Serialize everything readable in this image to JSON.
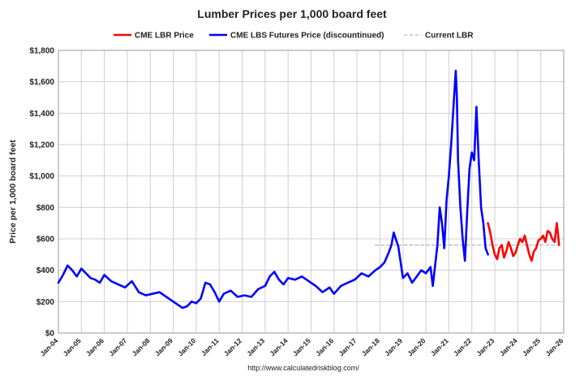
{
  "chart_data": {
    "type": "line",
    "title": "Lumber Prices per 1,000 board feet",
    "ylabel": "Price per 1,000 board feet",
    "xlabel": "",
    "source": "http://www.calculatedriskblog.com/",
    "ylim": [
      0,
      1800
    ],
    "yticks": [
      0,
      200,
      400,
      600,
      800,
      1000,
      1200,
      1400,
      1600,
      1800
    ],
    "ytick_labels": [
      "$0",
      "$200",
      "$400",
      "$600",
      "$800",
      "$1,000",
      "$1,200",
      "$1,400",
      "$1,600",
      "$1,800"
    ],
    "xlim": [
      2004,
      2026
    ],
    "xticks": [
      2004,
      2005,
      2006,
      2007,
      2008,
      2009,
      2010,
      2011,
      2012,
      2013,
      2014,
      2015,
      2016,
      2017,
      2018,
      2019,
      2020,
      2021,
      2022,
      2023,
      2024,
      2025,
      2026
    ],
    "xtick_labels": [
      "Jan-04",
      "Jan-05",
      "Jan-06",
      "Jan-07",
      "Jan-08",
      "Jan-09",
      "Jan-10",
      "Jan-11",
      "Jan-12",
      "Jan-13",
      "Jan-14",
      "Jan-15",
      "Jan-16",
      "Jan-17",
      "Jan-18",
      "Jan-19",
      "Jan-20",
      "Jan-21",
      "Jan-22",
      "Jan-23",
      "Jan-24",
      "Jan-25",
      "Jan-26"
    ],
    "grid": true,
    "legend_position": "top",
    "series": [
      {
        "name": "CME LBR Price",
        "color": "#ff0000",
        "x": [
          2022.7,
          2022.8,
          2022.9,
          2023.0,
          2023.1,
          2023.2,
          2023.3,
          2023.4,
          2023.5,
          2023.6,
          2023.7,
          2023.8,
          2023.9,
          2024.0,
          2024.1,
          2024.2,
          2024.3,
          2024.4,
          2024.5,
          2024.6,
          2024.7,
          2024.8,
          2024.9,
          2025.0,
          2025.1,
          2025.2,
          2025.3,
          2025.4,
          2025.5,
          2025.6,
          2025.7,
          2025.8
        ],
        "y": [
          700,
          640,
          560,
          500,
          470,
          540,
          560,
          480,
          520,
          580,
          540,
          490,
          510,
          560,
          600,
          580,
          620,
          560,
          500,
          460,
          520,
          540,
          590,
          600,
          620,
          580,
          650,
          640,
          600,
          580,
          700,
          560
        ]
      },
      {
        "name": "CME LBS Futures Price (discountinued)",
        "color": "#0000ff",
        "x": [
          2004.0,
          2004.2,
          2004.4,
          2004.6,
          2004.8,
          2005.0,
          2005.2,
          2005.4,
          2005.6,
          2005.8,
          2006.0,
          2006.3,
          2006.6,
          2006.9,
          2007.2,
          2007.5,
          2007.8,
          2008.1,
          2008.4,
          2008.7,
          2009.0,
          2009.2,
          2009.4,
          2009.6,
          2009.8,
          2010.0,
          2010.2,
          2010.4,
          2010.6,
          2010.8,
          2011.0,
          2011.2,
          2011.5,
          2011.8,
          2012.1,
          2012.4,
          2012.7,
          2013.0,
          2013.2,
          2013.4,
          2013.6,
          2013.8,
          2014.0,
          2014.3,
          2014.6,
          2014.9,
          2015.2,
          2015.5,
          2015.8,
          2016.0,
          2016.3,
          2016.6,
          2016.9,
          2017.2,
          2017.5,
          2017.8,
          2018.0,
          2018.2,
          2018.4,
          2018.5,
          2018.6,
          2018.8,
          2019.0,
          2019.2,
          2019.4,
          2019.6,
          2019.8,
          2020.0,
          2020.2,
          2020.3,
          2020.5,
          2020.6,
          2020.7,
          2020.8,
          2020.9,
          2021.0,
          2021.1,
          2021.2,
          2021.3,
          2021.35,
          2021.4,
          2021.5,
          2021.6,
          2021.7,
          2021.8,
          2021.9,
          2022.0,
          2022.1,
          2022.2,
          2022.3,
          2022.4,
          2022.5,
          2022.6,
          2022.7
        ],
        "y": [
          320,
          370,
          430,
          400,
          360,
          410,
          380,
          350,
          340,
          320,
          370,
          330,
          310,
          290,
          330,
          260,
          240,
          250,
          260,
          230,
          200,
          180,
          160,
          170,
          200,
          190,
          220,
          320,
          310,
          260,
          200,
          250,
          270,
          230,
          240,
          230,
          280,
          300,
          360,
          390,
          340,
          310,
          350,
          340,
          360,
          330,
          300,
          260,
          290,
          250,
          300,
          320,
          340,
          380,
          360,
          400,
          420,
          450,
          520,
          560,
          640,
          550,
          350,
          380,
          320,
          360,
          400,
          380,
          420,
          300,
          560,
          800,
          700,
          540,
          850,
          1000,
          1200,
          1440,
          1670,
          1500,
          1100,
          800,
          600,
          460,
          780,
          1050,
          1150,
          1100,
          1440,
          1100,
          800,
          700,
          540,
          500
        ]
      },
      {
        "name": "Current LBR",
        "color": "#bbbbbb",
        "dashed": true,
        "x": [
          2017.8,
          2025.8
        ],
        "y": [
          560,
          560
        ]
      }
    ]
  }
}
